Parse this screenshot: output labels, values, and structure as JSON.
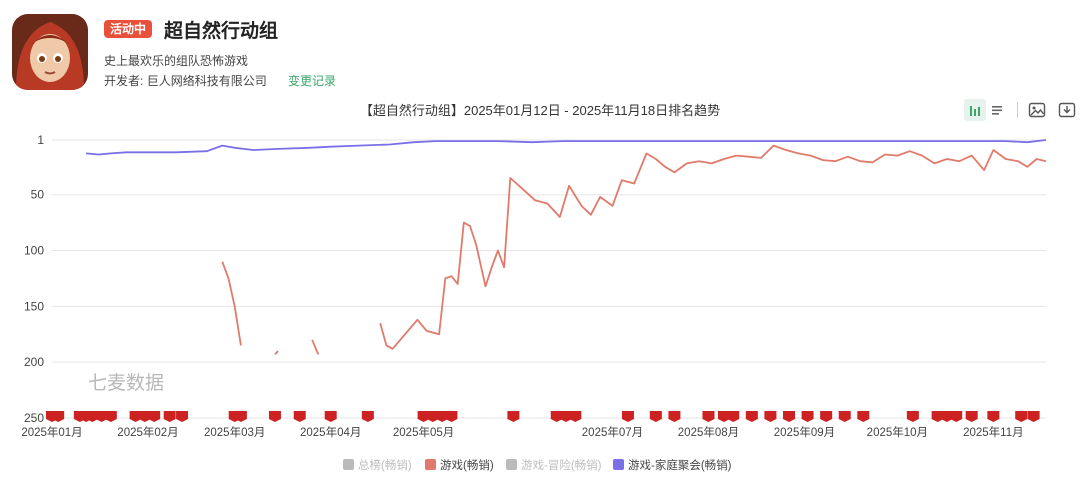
{
  "app": {
    "badge": "活动中",
    "title": "超自然行动组",
    "subtitle": "史上最欢乐的组队恐怖游戏",
    "developer_label": "开发者:",
    "developer": "巨人网络科技有限公司",
    "changelog_link": "变更记录",
    "icon": "app-portrait-icon"
  },
  "toolbar": {
    "icons": [
      "bar-chart-icon",
      "list-icon",
      "image-icon",
      "download-icon"
    ],
    "active_color": "#3aa66a"
  },
  "watermark": "七麦数据",
  "chart_data": {
    "type": "line",
    "title": "【超自然行动组】2025年01月12日 - 2025年11月18日排名趋势",
    "y_inverted": true,
    "ylim": [
      1,
      250
    ],
    "yticks": [
      "1",
      "50",
      "100",
      "150",
      "200",
      "250"
    ],
    "ytick_values": [
      1,
      50,
      100,
      150,
      200,
      250
    ],
    "xlim": [
      "2025-01-01",
      "2025-11-18"
    ],
    "xticks": [
      {
        "label": "2025年01月",
        "date": "2025-01-01"
      },
      {
        "label": "2025年02月",
        "date": "2025-02-01"
      },
      {
        "label": "2025年03月",
        "date": "2025-03-01"
      },
      {
        "label": "2025年04月",
        "date": "2025-04-01"
      },
      {
        "label": "2025年05月",
        "date": "2025-05-01"
      },
      {
        "label": "2025年07月",
        "date": "2025-07-01"
      },
      {
        "label": "2025年08月",
        "date": "2025-08-01"
      },
      {
        "label": "2025年09月",
        "date": "2025-09-01"
      },
      {
        "label": "2025年10月",
        "date": "2025-10-01"
      },
      {
        "label": "2025年11月",
        "date": "2025-11-01"
      }
    ],
    "grid": true,
    "legend_position": "bottom",
    "legend": [
      {
        "name": "总榜(畅销)",
        "color": "#bbbbbb",
        "active": false
      },
      {
        "name": "游戏(畅销)",
        "color": "#e07a6a",
        "active": true
      },
      {
        "name": "游戏-冒险(畅销)",
        "color": "#bbbbbb",
        "active": false
      },
      {
        "name": "游戏-家庭聚会(畅销)",
        "color": "#7b6fe8",
        "active": true
      }
    ],
    "series": [
      {
        "name": "游戏-家庭聚会(畅销)",
        "color": "#7b6fe8",
        "segments": [
          [
            [
              "2025-01-12",
              13
            ],
            [
              "2025-01-16",
              14
            ],
            [
              "2025-01-20",
              13
            ],
            [
              "2025-01-25",
              12
            ],
            [
              "2025-02-01",
              12
            ],
            [
              "2025-02-10",
              12
            ],
            [
              "2025-02-20",
              11
            ],
            [
              "2025-02-25",
              6
            ],
            [
              "2025-03-01",
              8
            ],
            [
              "2025-03-07",
              10
            ],
            [
              "2025-03-15",
              9
            ],
            [
              "2025-03-25",
              8
            ],
            [
              "2025-04-01",
              7
            ],
            [
              "2025-04-10",
              6
            ],
            [
              "2025-04-20",
              5
            ],
            [
              "2025-04-28",
              3
            ],
            [
              "2025-05-05",
              2
            ],
            [
              "2025-05-15",
              2
            ],
            [
              "2025-05-25",
              2
            ],
            [
              "2025-06-05",
              3
            ],
            [
              "2025-06-15",
              2
            ],
            [
              "2025-06-25",
              2
            ],
            [
              "2025-07-05",
              2
            ],
            [
              "2025-07-15",
              2
            ],
            [
              "2025-07-25",
              2
            ],
            [
              "2025-08-05",
              2
            ],
            [
              "2025-08-15",
              2
            ],
            [
              "2025-08-25",
              2
            ],
            [
              "2025-09-05",
              2
            ],
            [
              "2025-09-15",
              2
            ],
            [
              "2025-09-25",
              2
            ],
            [
              "2025-10-05",
              2
            ],
            [
              "2025-10-15",
              2
            ],
            [
              "2025-10-25",
              2
            ],
            [
              "2025-11-05",
              2
            ],
            [
              "2025-11-12",
              3
            ],
            [
              "2025-11-18",
              1
            ]
          ]
        ]
      },
      {
        "name": "游戏(畅销)",
        "color": "#e07a6a",
        "segments": [
          [
            [
              "2025-02-25",
              110
            ],
            [
              "2025-02-27",
              125
            ],
            [
              "2025-03-01",
              150
            ],
            [
              "2025-03-03",
              185
            ]
          ],
          [
            [
              "2025-03-14",
              193
            ],
            [
              "2025-03-15",
              190
            ]
          ],
          [
            [
              "2025-03-26",
              180
            ],
            [
              "2025-03-28",
              193
            ]
          ],
          [
            [
              "2025-04-17",
              165
            ],
            [
              "2025-04-19",
              185
            ],
            [
              "2025-04-21",
              188
            ],
            [
              "2025-04-25",
              175
            ],
            [
              "2025-04-29",
              162
            ],
            [
              "2025-05-02",
              172
            ],
            [
              "2025-05-06",
              175
            ],
            [
              "2025-05-08",
              125
            ],
            [
              "2025-05-10",
              123
            ],
            [
              "2025-05-12",
              130
            ],
            [
              "2025-05-14",
              75
            ],
            [
              "2025-05-16",
              78
            ],
            [
              "2025-05-18",
              95
            ],
            [
              "2025-05-21",
              132
            ],
            [
              "2025-05-23",
              115
            ],
            [
              "2025-05-25",
              100
            ],
            [
              "2025-05-27",
              115
            ],
            [
              "2025-05-29",
              35
            ],
            [
              "2025-06-02",
              45
            ],
            [
              "2025-06-06",
              55
            ],
            [
              "2025-06-10",
              58
            ],
            [
              "2025-06-14",
              70
            ],
            [
              "2025-06-17",
              42
            ],
            [
              "2025-06-21",
              60
            ],
            [
              "2025-06-24",
              68
            ],
            [
              "2025-06-27",
              52
            ],
            [
              "2025-07-01",
              60
            ],
            [
              "2025-07-04",
              37
            ],
            [
              "2025-07-08",
              40
            ],
            [
              "2025-07-12",
              13
            ],
            [
              "2025-07-15",
              18
            ],
            [
              "2025-07-18",
              25
            ],
            [
              "2025-07-21",
              30
            ],
            [
              "2025-07-25",
              22
            ],
            [
              "2025-07-29",
              20
            ],
            [
              "2025-08-02",
              22
            ],
            [
              "2025-08-06",
              18
            ],
            [
              "2025-08-10",
              15
            ],
            [
              "2025-08-14",
              16
            ],
            [
              "2025-08-18",
              17
            ],
            [
              "2025-08-22",
              6
            ],
            [
              "2025-08-26",
              10
            ],
            [
              "2025-08-30",
              13
            ],
            [
              "2025-09-03",
              15
            ],
            [
              "2025-09-07",
              19
            ],
            [
              "2025-09-11",
              20
            ],
            [
              "2025-09-15",
              16
            ],
            [
              "2025-09-19",
              20
            ],
            [
              "2025-09-23",
              21
            ],
            [
              "2025-09-27",
              14
            ],
            [
              "2025-10-01",
              15
            ],
            [
              "2025-10-05",
              11
            ],
            [
              "2025-10-09",
              15
            ],
            [
              "2025-10-13",
              22
            ],
            [
              "2025-10-17",
              18
            ],
            [
              "2025-10-21",
              20
            ],
            [
              "2025-10-25",
              15
            ],
            [
              "2025-10-29",
              28
            ],
            [
              "2025-11-01",
              10
            ],
            [
              "2025-11-05",
              18
            ],
            [
              "2025-11-09",
              20
            ],
            [
              "2025-11-12",
              25
            ],
            [
              "2025-11-15",
              18
            ],
            [
              "2025-11-18",
              20
            ]
          ]
        ]
      }
    ],
    "event_markers": {
      "color": "#cc2222",
      "dates": [
        "2025-01-01",
        "2025-01-03",
        "2025-01-10",
        "2025-01-12",
        "2025-01-14",
        "2025-01-17",
        "2025-01-20",
        "2025-01-28",
        "2025-01-31",
        "2025-02-03",
        "2025-02-08",
        "2025-02-12",
        "2025-03-01",
        "2025-03-03",
        "2025-03-14",
        "2025-03-22",
        "2025-04-01",
        "2025-04-13",
        "2025-05-01",
        "2025-05-04",
        "2025-05-07",
        "2025-05-10",
        "2025-05-30",
        "2025-06-13",
        "2025-06-16",
        "2025-06-19",
        "2025-07-06",
        "2025-07-15",
        "2025-07-21",
        "2025-08-01",
        "2025-08-06",
        "2025-08-09",
        "2025-08-15",
        "2025-08-21",
        "2025-08-27",
        "2025-09-02",
        "2025-09-08",
        "2025-09-14",
        "2025-09-20",
        "2025-10-06",
        "2025-10-14",
        "2025-10-17",
        "2025-10-20",
        "2025-10-25",
        "2025-11-01",
        "2025-11-10",
        "2025-11-14"
      ]
    }
  }
}
